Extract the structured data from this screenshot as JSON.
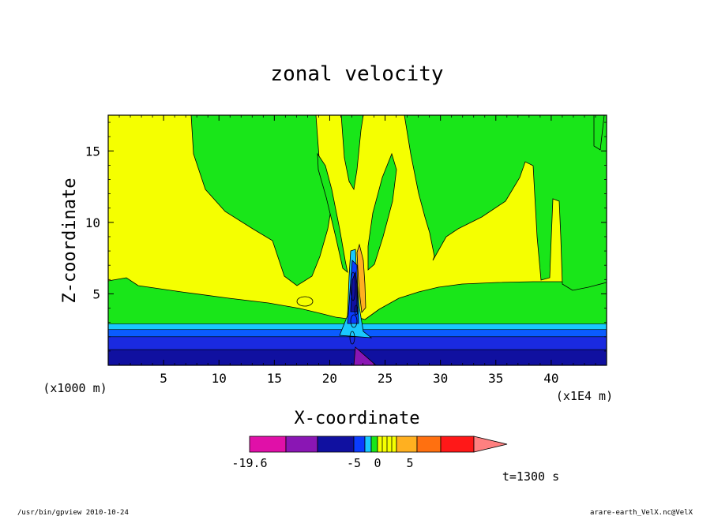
{
  "chart_data": {
    "type": "heatmap",
    "title": "zonal velocity",
    "xlabel": "X-coordinate",
    "ylabel": "Z-coordinate",
    "x_unit_left": "(x1000 m)",
    "x_unit_right": "(x1E4 m)",
    "xlim": [
      0,
      45
    ],
    "ylim": [
      0,
      17.5
    ],
    "xticks": [
      5,
      10,
      15,
      20,
      25,
      30,
      35,
      40
    ],
    "yticks": [
      5,
      10,
      15
    ],
    "colorbar": {
      "colors": [
        "#e010a8",
        "#8a16b4",
        "#1010a0",
        "#0a3cff",
        "#19c8ff",
        "#19e619",
        "#f5ff00",
        "#ffb020",
        "#ff7010",
        "#ff1818",
        "#ff8080"
      ],
      "tick_labels": [
        "-19.6",
        "-5",
        "0",
        "5"
      ]
    },
    "bands": [
      {
        "zmin": 0,
        "zmax": 1.1,
        "color": "#1010a0"
      },
      {
        "zmin": 1.1,
        "zmax": 2.0,
        "color": "#1a2ae0"
      },
      {
        "zmin": 2.0,
        "zmax": 2.5,
        "color": "#0a5cff"
      },
      {
        "zmin": 2.5,
        "zmax": 2.9,
        "color": "#19c8ff"
      }
    ],
    "time_label": "t=1300 s",
    "colors": {
      "positive": "#f5ff00",
      "weak": "#19e619",
      "core_negative": "#0a1aa8",
      "core_positive": "#ffb020",
      "purple": "#8a16b4"
    }
  },
  "footer": {
    "left": "/usr/bin/gpview  2010-10-24",
    "right": "arare-earth_VelX.nc@VelX"
  }
}
